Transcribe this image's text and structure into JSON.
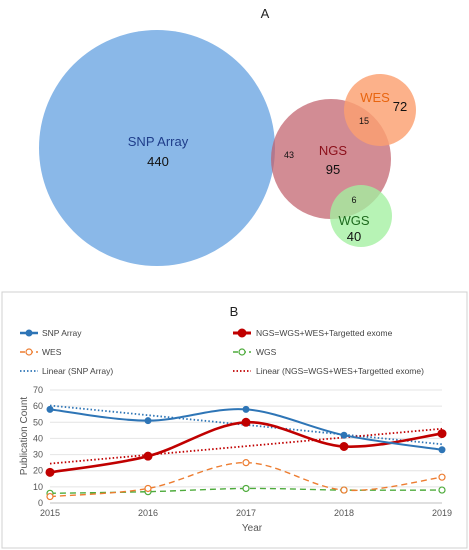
{
  "chart_data": [
    {
      "type": "venn",
      "panel_label": "A",
      "sets": [
        {
          "name": "SNP Array",
          "value": "440",
          "color": "#8ab8e8",
          "label_color": "#1f3d8a"
        },
        {
          "name": "NGS",
          "value": "95",
          "color": "#c0606b",
          "label_color": "#8b0f1a"
        },
        {
          "name": "WES",
          "value": "72",
          "color": "#fba070",
          "label_color": "#e8650f"
        },
        {
          "name": "WGS",
          "value": "40",
          "color": "#a3f0a0",
          "label_color": "#1d6a1d"
        }
      ],
      "intersections": [
        {
          "sets": [
            "SNP Array",
            "NGS"
          ],
          "value": "43"
        },
        {
          "sets": [
            "NGS",
            "WES"
          ],
          "value": "15"
        },
        {
          "sets": [
            "NGS",
            "WGS"
          ],
          "value": "6"
        }
      ]
    },
    {
      "type": "line",
      "panel_label": "B",
      "xlabel": "Year",
      "ylabel": "Publication Count",
      "x": [
        2015,
        2016,
        2017,
        2018,
        2019
      ],
      "ylim": [
        0,
        70
      ],
      "yticks": [
        0,
        10,
        20,
        30,
        40,
        50,
        60,
        70
      ],
      "grid": true,
      "legend_position": "top",
      "series": [
        {
          "name": "SNP Array",
          "values": [
            58,
            51,
            58,
            42,
            33
          ],
          "color": "#2e75b6",
          "style": "solid-marker"
        },
        {
          "name": "NGS=WGS+WES+Targetted exome",
          "values": [
            19,
            29,
            50,
            35,
            43
          ],
          "color": "#c00000",
          "style": "solid-marker"
        },
        {
          "name": "WES",
          "values": [
            4,
            9,
            25,
            8,
            16
          ],
          "color": "#ed7d31",
          "style": "dashed-open-marker"
        },
        {
          "name": "WGS",
          "values": [
            6,
            7,
            9,
            8,
            8
          ],
          "color": "#4eab3c",
          "style": "dashed-open-marker"
        },
        {
          "name": "Linear (SNP Array)",
          "values": [
            60.4,
            54.4,
            48.4,
            42.4,
            36.4
          ],
          "color": "#2e75b6",
          "style": "dotted"
        },
        {
          "name": "Linear (NGS=WGS+WES+Targetted exome)",
          "values": [
            24.4,
            29.8,
            35.2,
            40.6,
            46.0
          ],
          "color": "#c00000",
          "style": "dotted"
        }
      ]
    }
  ]
}
